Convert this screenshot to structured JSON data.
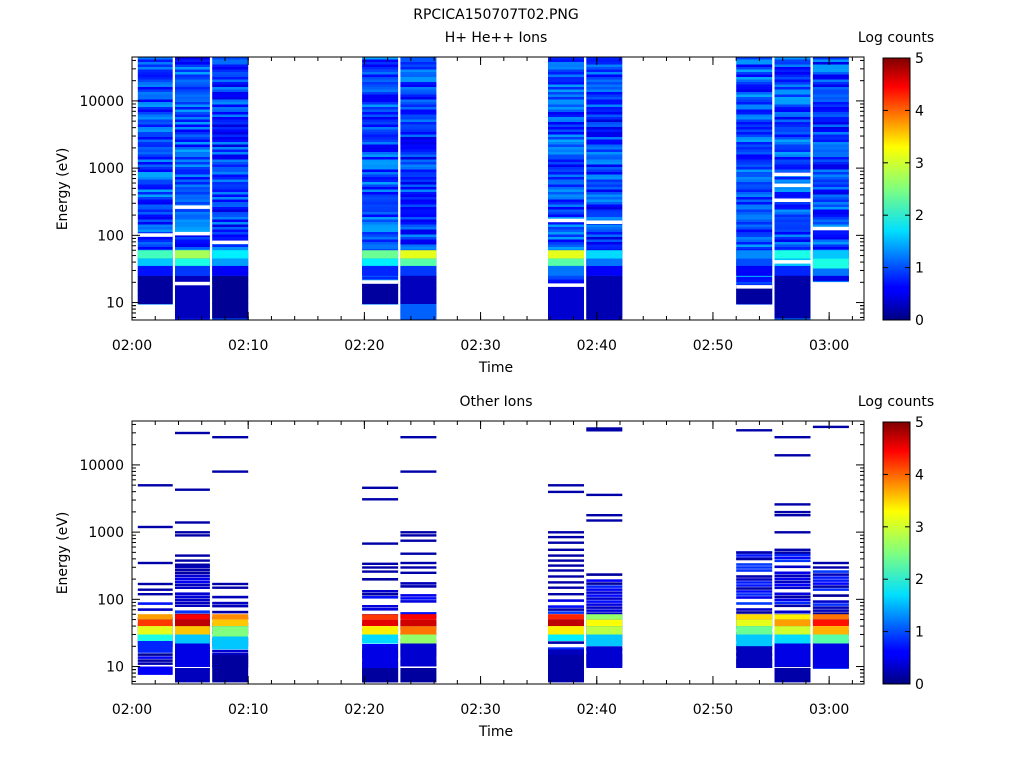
{
  "figure_title": "RPCICA150707T02.PNG",
  "chart_data": [
    {
      "type": "heatmap",
      "title": "H+ He++ Ions",
      "xlabel": "Time",
      "ylabel": "Energy (eV)",
      "colorbar_label": "Log counts",
      "y_scale": "log",
      "ylim": [
        5.5,
        45000
      ],
      "xlim": [
        "02:00",
        "03:03"
      ],
      "x_ticks": [
        "02:00",
        "02:10",
        "02:20",
        "02:30",
        "02:40",
        "02:50",
        "03:00"
      ],
      "y_ticks": [
        {
          "value": 10,
          "label": "10"
        },
        {
          "value": 100,
          "label": "100"
        },
        {
          "value": 1000,
          "label": "1000"
        },
        {
          "value": 10000,
          "label": "10000"
        }
      ],
      "colorbar": {
        "range": [
          0,
          5
        ],
        "ticks": [
          "0",
          "1",
          "2",
          "3",
          "4",
          "5"
        ]
      },
      "blocks": [
        {
          "start": "02:00.5",
          "end": "02:03.5",
          "emin": 9.5,
          "background": 1.0,
          "gaps": [
            100
          ],
          "rows": [
            {
              "e": [
                45,
                60
              ],
              "v": 2.2
            },
            {
              "e": [
                35,
                45
              ],
              "v": 1.6
            },
            {
              "e": [
                25,
                35
              ],
              "v": 0.7
            },
            {
              "e": [
                9.5,
                25
              ],
              "v": 0.15
            }
          ]
        },
        {
          "start": "02:03.7",
          "end": "02:06.7",
          "emin": 5.8,
          "background": 1.0,
          "gaps": [
            260,
            105,
            19
          ],
          "rows": [
            {
              "e": [
                45,
                60
              ],
              "v": 2.7
            },
            {
              "e": [
                35,
                45
              ],
              "v": 2.0
            },
            {
              "e": [
                25,
                35
              ],
              "v": 0.9
            },
            {
              "e": [
                5.8,
                25
              ],
              "v": 0.3
            }
          ]
        },
        {
          "start": "02:06.9",
          "end": "02:10.0",
          "emin": 5.8,
          "background": 0.9,
          "gaps": [
            78
          ],
          "rows": [
            {
              "e": [
                45,
                60
              ],
              "v": 1.8
            },
            {
              "e": [
                35,
                45
              ],
              "v": 1.4
            },
            {
              "e": [
                25,
                35
              ],
              "v": 0.6
            },
            {
              "e": [
                5.8,
                25
              ],
              "v": 0.1
            }
          ]
        },
        {
          "start": "02:19.8",
          "end": "02:22.9",
          "emin": 9.5,
          "background": 1.0,
          "gaps": [
            20
          ],
          "rows": [
            {
              "e": [
                45,
                60
              ],
              "v": 2.4
            },
            {
              "e": [
                35,
                45
              ],
              "v": 1.8
            },
            {
              "e": [
                25,
                35
              ],
              "v": 0.8
            },
            {
              "e": [
                9.5,
                20
              ],
              "v": 0.15
            }
          ]
        },
        {
          "start": "02:23.1",
          "end": "02:26.2",
          "emin": 5.8,
          "background": 0.9,
          "gaps": [],
          "rows": [
            {
              "e": [
                45,
                60
              ],
              "v": 3.0
            },
            {
              "e": [
                35,
                45
              ],
              "v": 2.3
            },
            {
              "e": [
                25,
                35
              ],
              "v": 0.9
            },
            {
              "e": [
                9.5,
                25
              ],
              "v": 0.3
            },
            {
              "e": [
                5.8,
                9.5
              ],
              "v": 1.1
            }
          ]
        },
        {
          "start": "02:35.8",
          "end": "02:38.9",
          "emin": 5.8,
          "background": 1.0,
          "gaps": [
            165,
            18
          ],
          "rows": [
            {
              "e": [
                45,
                60
              ],
              "v": 3.0
            },
            {
              "e": [
                35,
                45
              ],
              "v": 2.3
            },
            {
              "e": [
                25,
                35
              ],
              "v": 1.2
            },
            {
              "e": [
                5.8,
                18
              ],
              "v": 0.4
            }
          ]
        },
        {
          "start": "02:39.1",
          "end": "02:42.2",
          "emin": 5.8,
          "background": 0.9,
          "gaps": [
            155
          ],
          "rows": [
            {
              "e": [
                45,
                60
              ],
              "v": 1.7
            },
            {
              "e": [
                35,
                45
              ],
              "v": 1.2
            },
            {
              "e": [
                25,
                35
              ],
              "v": 0.6
            },
            {
              "e": [
                5.8,
                25
              ],
              "v": 0.25
            }
          ]
        },
        {
          "start": "02:52.0",
          "end": "02:55.1",
          "emin": 9.5,
          "background": 1.0,
          "gaps": [
            17
          ],
          "rows": [
            {
              "e": [
                45,
                60
              ],
              "v": 1.3
            },
            {
              "e": [
                35,
                45
              ],
              "v": 1.0
            },
            {
              "e": [
                25,
                35
              ],
              "v": 0.6
            },
            {
              "e": [
                9.5,
                17
              ],
              "v": 0.15
            }
          ]
        },
        {
          "start": "02:55.3",
          "end": "02:58.4",
          "emin": 5.8,
          "background": 1.0,
          "gaps": [
            800,
            550,
            330,
            40
          ],
          "rows": [
            {
              "e": [
                45,
                60
              ],
              "v": 2.0
            },
            {
              "e": [
                35,
                45
              ],
              "v": 1.6
            },
            {
              "e": [
                25,
                35
              ],
              "v": 0.8
            },
            {
              "e": [
                5.8,
                25
              ],
              "v": 0.2
            }
          ]
        },
        {
          "start": "02:58.6",
          "end": "03:01.7",
          "emin": 21,
          "background": 0.95,
          "gaps": [
            125
          ],
          "rows": [
            {
              "e": [
                45,
                60
              ],
              "v": 1.6
            },
            {
              "e": [
                32,
                45
              ],
              "v": 2.0
            },
            {
              "e": [
                25,
                32
              ],
              "v": 1.2
            },
            {
              "e": [
                21,
                25
              ],
              "v": 0.5
            }
          ]
        }
      ]
    },
    {
      "type": "heatmap",
      "title": "Other Ions",
      "xlabel": "Time",
      "ylabel": "Energy (eV)",
      "colorbar_label": "Log counts",
      "y_scale": "log",
      "ylim": [
        5.5,
        45000
      ],
      "xlim": [
        "02:00",
        "03:03"
      ],
      "x_ticks": [
        "02:00",
        "02:10",
        "02:20",
        "02:30",
        "02:40",
        "02:50",
        "03:00"
      ],
      "y_ticks": [
        {
          "value": 10,
          "label": "10"
        },
        {
          "value": 100,
          "label": "100"
        },
        {
          "value": 1000,
          "label": "1000"
        },
        {
          "value": 10000,
          "label": "10000"
        }
      ],
      "colorbar": {
        "range": [
          0,
          5
        ],
        "ticks": [
          "0",
          "1",
          "2",
          "3",
          "4",
          "5"
        ]
      },
      "blocks": [
        {
          "start": "02:00.5",
          "end": "02:03.5",
          "lines": [
            5000,
            1200,
            350,
            170,
            140,
            120
          ],
          "dense_top": 100,
          "rows": [
            {
              "e": [
                50,
                60
              ],
              "v": 3.6
            },
            {
              "e": [
                40,
                50
              ],
              "v": 4.1
            },
            {
              "e": [
                30,
                40
              ],
              "v": 3.0
            },
            {
              "e": [
                24,
                30
              ],
              "v": 2.0
            },
            {
              "e": [
                16,
                24
              ],
              "v": 0.8
            },
            {
              "e": [
                7.5,
                10
              ],
              "v": 0.6
            }
          ]
        },
        {
          "start": "02:03.7",
          "end": "02:06.7",
          "lines": [
            30000,
            4300,
            1400,
            1000,
            900,
            450,
            380,
            330
          ],
          "dense_top": 320,
          "rows": [
            {
              "e": [
                50,
                60
              ],
              "v": 4.4
            },
            {
              "e": [
                40,
                50
              ],
              "v": 4.7
            },
            {
              "e": [
                30,
                40
              ],
              "v": 3.4
            },
            {
              "e": [
                22,
                30
              ],
              "v": 1.6
            },
            {
              "e": [
                10,
                22
              ],
              "v": 0.5
            },
            {
              "e": [
                5.8,
                9.5
              ],
              "v": 0.3
            }
          ]
        },
        {
          "start": "02:06.9",
          "end": "02:10.0",
          "lines": [
            26000,
            8000,
            170,
            150
          ],
          "dense_top": 125,
          "rows": [
            {
              "e": [
                50,
                60
              ],
              "v": 3.7
            },
            {
              "e": [
                40,
                50
              ],
              "v": 3.4
            },
            {
              "e": [
                28,
                40
              ],
              "v": 2.5
            },
            {
              "e": [
                18,
                28
              ],
              "v": 1.6
            },
            {
              "e": [
                5.8,
                15
              ],
              "v": 0.15
            }
          ]
        },
        {
          "start": "02:19.8",
          "end": "02:22.9",
          "lines": [
            4600,
            3100,
            680,
            340,
            300,
            260
          ],
          "dense_top": 230,
          "rows": [
            {
              "e": [
                50,
                60
              ],
              "v": 4.1
            },
            {
              "e": [
                40,
                50
              ],
              "v": 4.5
            },
            {
              "e": [
                30,
                40
              ],
              "v": 3.2
            },
            {
              "e": [
                22,
                30
              ],
              "v": 1.7
            },
            {
              "e": [
                5.8,
                20
              ],
              "v": 0.5
            },
            {
              "e": [
                5.8,
                9.5
              ],
              "v": 0.15
            }
          ]
        },
        {
          "start": "02:23.1",
          "end": "02:26.2",
          "lines": [
            26000,
            8000,
            1000,
            900,
            750,
            480,
            350,
            300,
            250
          ],
          "dense_top": 200,
          "rows": [
            {
              "e": [
                50,
                60
              ],
              "v": 4.4
            },
            {
              "e": [
                40,
                50
              ],
              "v": 4.6
            },
            {
              "e": [
                30,
                40
              ],
              "v": 3.8
            },
            {
              "e": [
                22,
                30
              ],
              "v": 2.6
            },
            {
              "e": [
                10,
                22
              ],
              "v": 0.4
            },
            {
              "e": [
                5.8,
                9.5
              ],
              "v": 0.15
            }
          ]
        },
        {
          "start": "02:35.8",
          "end": "02:38.9",
          "lines": [
            5000,
            4000,
            1000,
            850,
            700,
            550,
            450,
            380,
            320,
            270,
            220,
            180,
            150,
            120
          ],
          "dense_top": 100,
          "rows": [
            {
              "e": [
                50,
                60
              ],
              "v": 4.2
            },
            {
              "e": [
                40,
                50
              ],
              "v": 4.7
            },
            {
              "e": [
                30,
                40
              ],
              "v": 3.2
            },
            {
              "e": [
                24,
                30
              ],
              "v": 1.8
            },
            {
              "e": [
                15,
                18
              ],
              "v": 0.3
            },
            {
              "e": [
                5.8,
                15
              ],
              "v": 0.2
            }
          ]
        },
        {
          "start": "02:39.1",
          "end": "02:42.2",
          "lines": [
            35000,
            33000,
            3600,
            1800,
            1500
          ],
          "dense_top": 270,
          "rows": [
            {
              "e": [
                50,
                60
              ],
              "v": 2.6
            },
            {
              "e": [
                40,
                50
              ],
              "v": 3.1
            },
            {
              "e": [
                30,
                40
              ],
              "v": 2.8
            },
            {
              "e": [
                20,
                30
              ],
              "v": 1.6
            },
            {
              "e": [
                9.5,
                20
              ],
              "v": 0.4
            }
          ]
        },
        {
          "start": "02:52.0",
          "end": "02:55.1",
          "lines": [
            33000,
            500,
            400
          ],
          "dense_top": 520,
          "rows": [
            {
              "e": [
                50,
                60
              ],
              "v": 3.3
            },
            {
              "e": [
                40,
                50
              ],
              "v": 3.0
            },
            {
              "e": [
                30,
                40
              ],
              "v": 2.4
            },
            {
              "e": [
                20,
                30
              ],
              "v": 1.6
            },
            {
              "e": [
                9.5,
                20
              ],
              "v": 0.3
            }
          ]
        },
        {
          "start": "02:55.3",
          "end": "02:58.4",
          "lines": [
            26000,
            14000,
            2600,
            2000,
            1800,
            1000,
            550,
            500
          ],
          "dense_top": 480,
          "rows": [
            {
              "e": [
                50,
                60
              ],
              "v": 3.2
            },
            {
              "e": [
                40,
                50
              ],
              "v": 3.6
            },
            {
              "e": [
                30,
                40
              ],
              "v": 2.9
            },
            {
              "e": [
                22,
                30
              ],
              "v": 1.7
            },
            {
              "e": [
                10,
                22
              ],
              "v": 0.5
            },
            {
              "e": [
                5.8,
                9.5
              ],
              "v": 0.2
            }
          ]
        },
        {
          "start": "02:58.6",
          "end": "03:01.7",
          "lines": [
            37000,
            350,
            300
          ],
          "dense_top": 270,
          "rows": [
            {
              "e": [
                50,
                60
              ],
              "v": 3.8
            },
            {
              "e": [
                40,
                50
              ],
              "v": 4.3
            },
            {
              "e": [
                30,
                40
              ],
              "v": 3.5
            },
            {
              "e": [
                22,
                30
              ],
              "v": 2.3
            },
            {
              "e": [
                9.5,
                22
              ],
              "v": 0.5
            }
          ]
        }
      ]
    }
  ]
}
